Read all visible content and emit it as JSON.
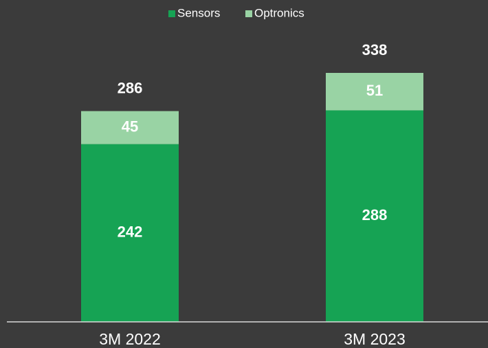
{
  "chart_data": {
    "type": "stacked_bar",
    "categories": [
      "3M 2022",
      "3M 2023"
    ],
    "series": [
      {
        "name": "Sensors",
        "color": "#16a354",
        "values": [
          242,
          288
        ]
      },
      {
        "name": "Optronics",
        "color": "#99d3a4",
        "values": [
          45,
          51
        ]
      }
    ],
    "totals": [
      286,
      338
    ],
    "legend": "top"
  }
}
